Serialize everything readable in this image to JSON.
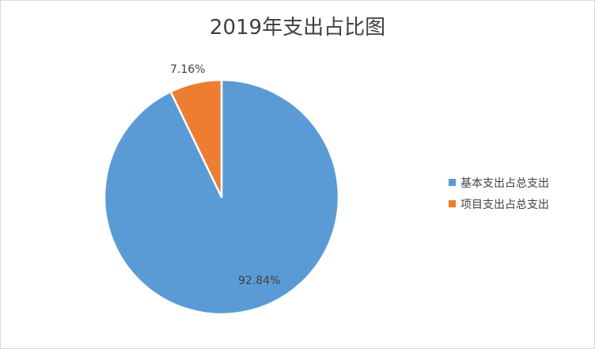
{
  "chart_data": {
    "type": "pie",
    "title": "2019年支出占比图",
    "categories": [
      "基本支出占总支出",
      "项目支出占总支出"
    ],
    "values": [
      92.84,
      7.16
    ],
    "value_labels": [
      "92.84%",
      "7.16%"
    ],
    "colors": [
      "#5b9bd5",
      "#ed7d31"
    ],
    "legend_position": "right"
  }
}
